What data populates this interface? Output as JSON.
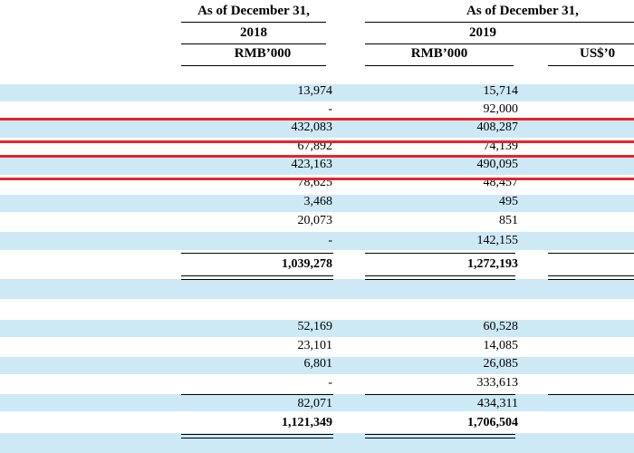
{
  "header": {
    "col2018": {
      "period": "As of December 31,",
      "year": "2018",
      "unit": "RMB’000"
    },
    "col2019": {
      "period": "As of December 31,",
      "year": "2019",
      "unit": "RMB’000",
      "unit_usd": "US$’0"
    }
  },
  "rows": [
    {
      "v2018": "13,974",
      "v2019": "15,714"
    },
    {
      "v2018": "-",
      "v2019": "92,000"
    },
    {
      "v2018": "432,083",
      "v2019": "408,287"
    },
    {
      "v2018": "67,892",
      "v2019": "74,139"
    },
    {
      "v2018": "423,163",
      "v2019": "490,095"
    },
    {
      "v2018": "78,625",
      "v2019": "48,457"
    },
    {
      "v2018": "3,468",
      "v2019": "495"
    },
    {
      "v2018": "20,073",
      "v2019": "851"
    },
    {
      "v2018": "-",
      "v2019": "142,155"
    }
  ],
  "total_current_assets": {
    "v2018": "1,039,278",
    "v2019": "1,272,193"
  },
  "rows2": [
    {
      "v2018": "52,169",
      "v2019": "60,528"
    },
    {
      "v2018": "23,101",
      "v2019": "14,085"
    },
    {
      "v2018": "6,801",
      "v2019": "26,085"
    },
    {
      "v2018": "-",
      "v2019": "333,613"
    }
  ],
  "subtotal2": {
    "v2018": "82,071",
    "v2019": "434,311"
  },
  "total_assets": {
    "v2018": "1,121,349",
    "v2019": "1,706,504"
  },
  "colors": {
    "band": "#cde9f6",
    "highlight_line": "#e8232b"
  }
}
